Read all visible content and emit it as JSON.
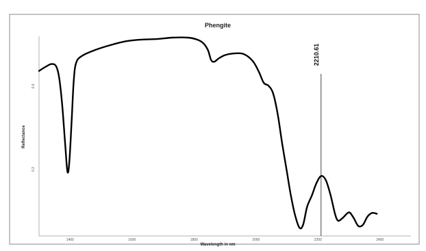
{
  "chart_data": {
    "type": "line",
    "title": "Phengite",
    "xlabel": "Wavelength in nm",
    "ylabel": "Reflectance",
    "xlim": [
      1300,
      2500
    ],
    "ylim": [
      0.06,
      0.78
    ],
    "x_ticks": [
      "1400",
      "1600",
      "1800",
      "2000",
      "2200",
      "2400"
    ],
    "y_ticks": [
      {
        "label": "0.6",
        "value": 0.6
      },
      {
        "label": "0.3",
        "value": 0.3
      }
    ],
    "grid": false,
    "marker": {
      "x": 2210,
      "label": "2210.61"
    },
    "series": [
      {
        "color": "#000000",
        "points": [
          [
            1300,
            0.655
          ],
          [
            1320,
            0.669
          ],
          [
            1340,
            0.68
          ],
          [
            1355,
            0.672
          ],
          [
            1365,
            0.63
          ],
          [
            1375,
            0.53
          ],
          [
            1385,
            0.38
          ],
          [
            1392,
            0.29
          ],
          [
            1398,
            0.33
          ],
          [
            1405,
            0.47
          ],
          [
            1412,
            0.62
          ],
          [
            1420,
            0.685
          ],
          [
            1440,
            0.71
          ],
          [
            1480,
            0.73
          ],
          [
            1530,
            0.748
          ],
          [
            1580,
            0.762
          ],
          [
            1630,
            0.768
          ],
          [
            1680,
            0.77
          ],
          [
            1730,
            0.775
          ],
          [
            1780,
            0.775
          ],
          [
            1810,
            0.768
          ],
          [
            1830,
            0.755
          ],
          [
            1845,
            0.73
          ],
          [
            1855,
            0.695
          ],
          [
            1865,
            0.688
          ],
          [
            1880,
            0.7
          ],
          [
            1900,
            0.712
          ],
          [
            1930,
            0.718
          ],
          [
            1960,
            0.716
          ],
          [
            1990,
            0.69
          ],
          [
            2010,
            0.65
          ],
          [
            2025,
            0.612
          ],
          [
            2040,
            0.602
          ],
          [
            2055,
            0.575
          ],
          [
            2070,
            0.5
          ],
          [
            2085,
            0.39
          ],
          [
            2100,
            0.29
          ],
          [
            2112,
            0.21
          ],
          [
            2125,
            0.14
          ],
          [
            2140,
            0.09
          ],
          [
            2152,
            0.1
          ],
          [
            2165,
            0.165
          ],
          [
            2180,
            0.205
          ],
          [
            2195,
            0.25
          ],
          [
            2210,
            0.276
          ],
          [
            2225,
            0.262
          ],
          [
            2240,
            0.21
          ],
          [
            2255,
            0.14
          ],
          [
            2265,
            0.115
          ],
          [
            2280,
            0.125
          ],
          [
            2300,
            0.145
          ],
          [
            2315,
            0.125
          ],
          [
            2330,
            0.096
          ],
          [
            2345,
            0.1
          ],
          [
            2360,
            0.13
          ],
          [
            2375,
            0.143
          ],
          [
            2390,
            0.14
          ]
        ]
      }
    ]
  }
}
